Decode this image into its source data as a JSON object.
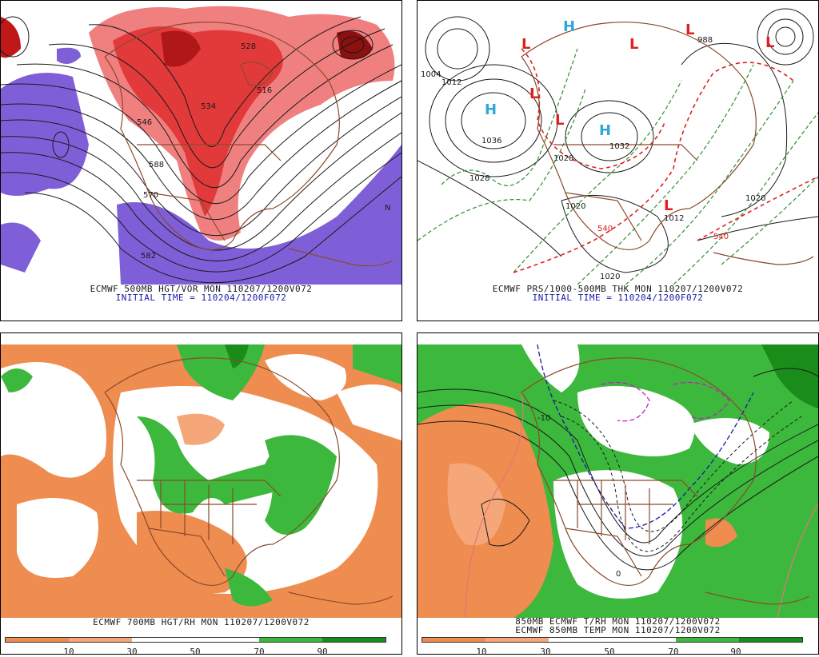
{
  "panels": {
    "p1": {
      "title": "ECMWF 500MB HGT/VOR MON 110207/1200V072",
      "subtitle": "INITIAL TIME = 110204/1200F072",
      "contour_labels": [
        "588",
        "570",
        "582",
        "546",
        "528",
        "516",
        "534"
      ],
      "center_label": "N"
    },
    "p2": {
      "title": "ECMWF PRS/1000-500MB THK MON 110207/1200V072",
      "subtitle": "INITIAL TIME = 110204/1200F072",
      "high_symbol": "H",
      "low_symbol": "L",
      "pressure_labels": [
        "1036",
        "1028",
        "1020",
        "1028",
        "1032",
        "1012",
        "1020",
        "1020",
        "1004",
        "1012",
        "988"
      ],
      "thickness_labels": [
        "540",
        "540"
      ]
    },
    "p3": {
      "title": "ECMWF 700MB HGT/RH MON 110207/1200V072",
      "scale": {
        "ticks": [
          "10",
          "30",
          "50",
          "70",
          "90"
        ],
        "colors": [
          "#ef8c4f",
          "#f5a77a",
          "#ffffff",
          "#ffffff",
          "#3cb83c",
          "#1a8c1a"
        ]
      }
    },
    "p4": {
      "title": "850MB ECMWF T/RH MON 110207/1200V072",
      "subtitle": "ECMWF 850MB TEMP MON 110207/1200V072",
      "contour_labels": [
        "0",
        "-10"
      ],
      "scale": {
        "ticks": [
          "10",
          "30",
          "50",
          "70",
          "90"
        ],
        "colors": [
          "#ef8c4f",
          "#f5a77a",
          "#ffffff",
          "#ffffff",
          "#3cb83c",
          "#1a8c1a"
        ]
      }
    }
  },
  "colors": {
    "land_outline": "#8b4a2b",
    "vorticity_red": "#e23a3a",
    "vorticity_light": "#f08080",
    "vorticity_purple": "#7f5fd8",
    "dry_orange": "#ef8c4f",
    "moist_green": "#2fb02f",
    "high_blue": "#2fa8d8",
    "low_red": "#e02020",
    "thickness_green": "#2f8f2f"
  }
}
